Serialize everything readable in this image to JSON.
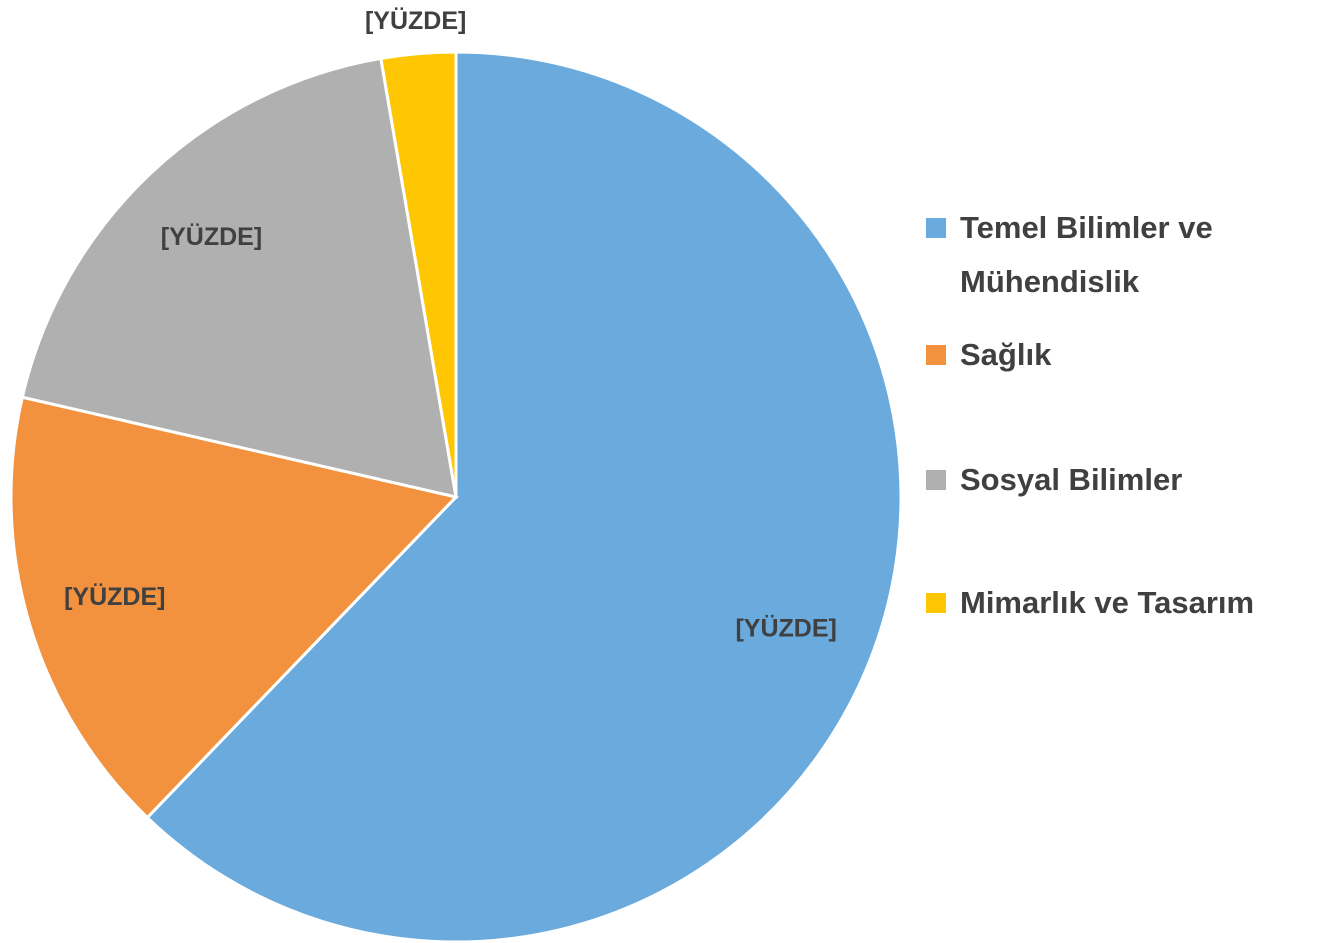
{
  "chart_data": {
    "type": "pie",
    "categories": [
      "Temel Bilimler ve Mühendislik",
      "Sağlık",
      "Sosyal Bilimler",
      "Mimarlık ve Tasarım"
    ],
    "values": [
      62.2,
      16.4,
      18.7,
      2.7
    ],
    "value_labels": [
      "[YÜZDE]",
      "[YÜZDE]",
      "[YÜZDE]",
      "[YÜZDE]"
    ],
    "colors": [
      "#6aaadc",
      "#f2923f",
      "#b0b0b0",
      "#ffc703"
    ],
    "legend": "right"
  }
}
